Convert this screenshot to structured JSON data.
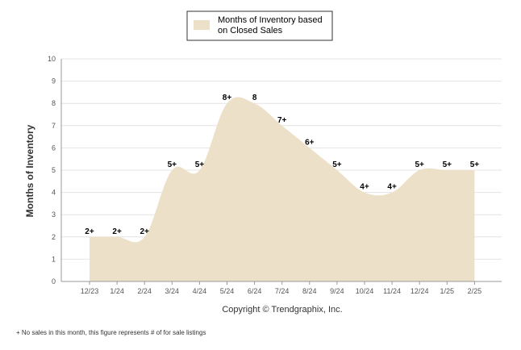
{
  "chart_data": {
    "type": "area",
    "title": "",
    "ylabel": "Months of Inventory",
    "xlabel": "",
    "legend": {
      "placement": "top-center",
      "entries": [
        "Months of Inventory based",
        "on Closed Sales"
      ]
    },
    "series_name": "Months of Inventory based on Closed Sales",
    "categories": [
      "12/23",
      "1/24",
      "2/24",
      "3/24",
      "4/24",
      "5/24",
      "6/24",
      "7/24",
      "8/24",
      "9/24",
      "10/24",
      "11/24",
      "12/24",
      "1/25",
      "2/25"
    ],
    "values": [
      2,
      2,
      2,
      5,
      5,
      8,
      8,
      7,
      6,
      5,
      4,
      4,
      5,
      5,
      5
    ],
    "labels": [
      "2+",
      "2+",
      "2+",
      "5+",
      "5+",
      "8+",
      "8",
      "7+",
      "6+",
      "5+",
      "4+",
      "4+",
      "5+",
      "5+",
      "5+"
    ],
    "ylim": [
      0,
      10
    ],
    "yticks": [
      "0",
      "1",
      "2",
      "3",
      "4",
      "5",
      "6",
      "7",
      "8",
      "9",
      "10"
    ],
    "grid": true,
    "colors": {
      "fill": "#ede0c8",
      "grid": "#e4e4e4",
      "axis": "#999999"
    }
  },
  "copyright": "Copyright © Trendgraphix, Inc.",
  "footnote": "+  No sales in this month, this figure represents # of for sale listings"
}
